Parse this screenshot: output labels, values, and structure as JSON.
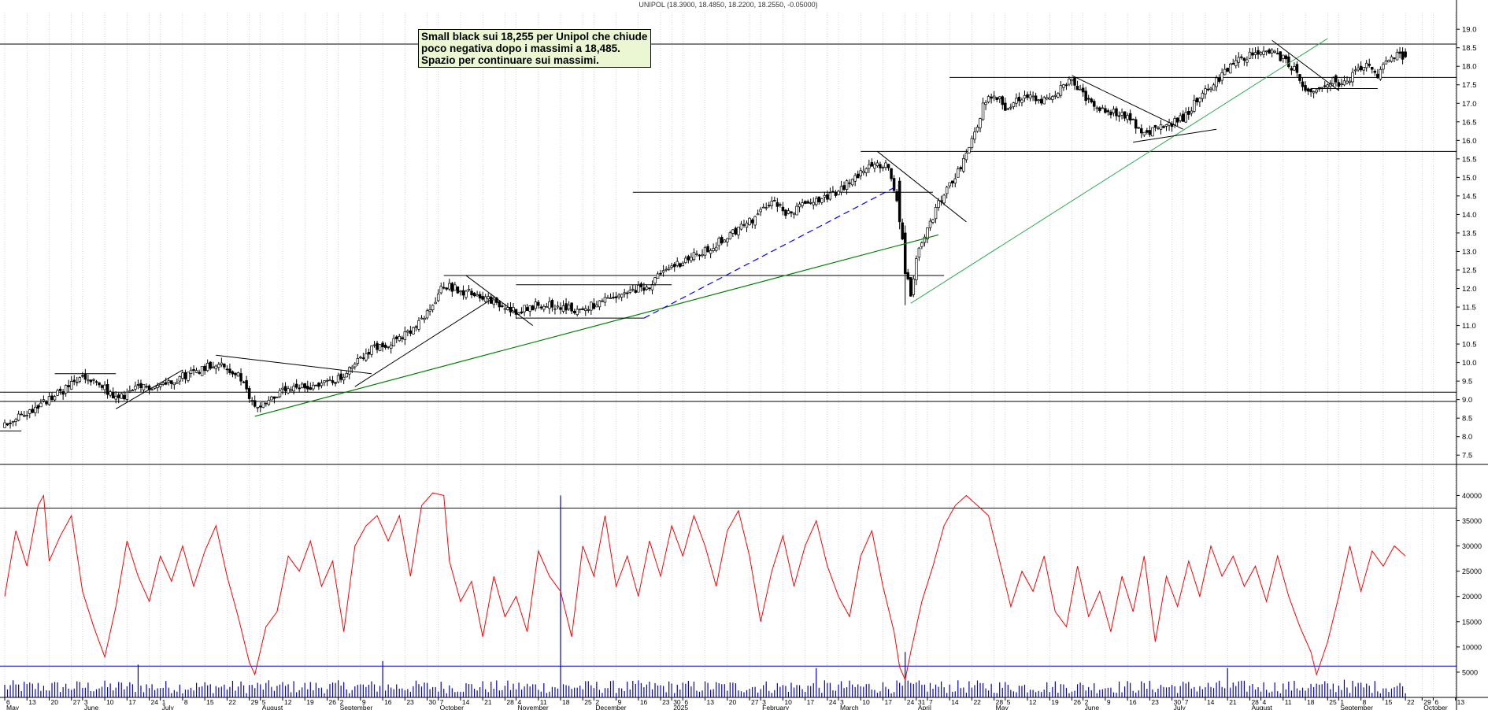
{
  "title": "UNIPOL (18.3900, 18.4850, 18.2200, 18.2550, -0.05000)",
  "annotation": {
    "lines": [
      "Small black sui 18,255  per Unipol che chiude",
      "poco negativa dopo i massimi a 18,485.",
      "Spazio per continuare sui massimi."
    ]
  },
  "colors": {
    "candle": "#000000",
    "volume": "#0000cc",
    "oscillator": "#ff0000",
    "oscillator_bands": "#0000cc",
    "support_trendline": "#008000",
    "dashed_trendline": "#0000ff",
    "long_trendline": "#2eaa52",
    "grid": "#b8b8b8",
    "annotation_bg": "#eaf7d2"
  },
  "chart_data": {
    "type": "candlestick",
    "title": "UNIPOL (18.3900, 18.4850, 18.2200, 18.2550, -0.05000)",
    "xlabel": "",
    "ylabel": "",
    "ylim": [
      7.25,
      19.45
    ],
    "y_ticks": [
      "7.5",
      "8.0",
      "8.5",
      "9.0",
      "9.5",
      "10.0",
      "10.5",
      "11.0",
      "11.5",
      "12.0",
      "12.5",
      "13.0",
      "13.5",
      "14.0",
      "14.5",
      "15.0",
      "15.5",
      "16.0",
      "16.5",
      "17.0",
      "17.5",
      "18.0",
      "18.5",
      "19.0"
    ],
    "grid": "vertical dotted",
    "last_bar": {
      "open": 18.39,
      "high": 18.485,
      "low": 18.22,
      "close": 18.255,
      "change": -0.05
    },
    "price_path": [
      {
        "d": 0,
        "c": 8.3
      },
      {
        "d": 16,
        "c": 9.0
      },
      {
        "d": 28,
        "c": 9.6
      },
      {
        "d": 36,
        "c": 9.3
      },
      {
        "d": 40,
        "c": 9.0
      },
      {
        "d": 48,
        "c": 9.3
      },
      {
        "d": 56,
        "c": 9.4
      },
      {
        "d": 68,
        "c": 9.75
      },
      {
        "d": 76,
        "c": 10.0
      },
      {
        "d": 84,
        "c": 9.65
      },
      {
        "d": 90,
        "c": 8.8
      },
      {
        "d": 100,
        "c": 9.2
      },
      {
        "d": 112,
        "c": 9.4
      },
      {
        "d": 122,
        "c": 9.6
      },
      {
        "d": 130,
        "c": 10.3
      },
      {
        "d": 140,
        "c": 10.6
      },
      {
        "d": 146,
        "c": 10.8
      },
      {
        "d": 152,
        "c": 11.3
      },
      {
        "d": 158,
        "c": 12.1
      },
      {
        "d": 166,
        "c": 11.9
      },
      {
        "d": 172,
        "c": 11.8
      },
      {
        "d": 178,
        "c": 11.5
      },
      {
        "d": 184,
        "c": 11.4
      },
      {
        "d": 194,
        "c": 11.6
      },
      {
        "d": 206,
        "c": 11.4
      },
      {
        "d": 222,
        "c": 11.8
      },
      {
        "d": 232,
        "c": 12.1
      },
      {
        "d": 240,
        "c": 12.6
      },
      {
        "d": 252,
        "c": 13.0
      },
      {
        "d": 260,
        "c": 13.4
      },
      {
        "d": 270,
        "c": 13.9
      },
      {
        "d": 276,
        "c": 14.4
      },
      {
        "d": 282,
        "c": 14.0
      },
      {
        "d": 290,
        "c": 14.4
      },
      {
        "d": 298,
        "c": 14.5
      },
      {
        "d": 306,
        "c": 15.0
      },
      {
        "d": 312,
        "c": 15.4
      },
      {
        "d": 318,
        "c": 15.3
      },
      {
        "d": 322,
        "c": 14.2
      },
      {
        "d": 324,
        "c": 12.6
      },
      {
        "d": 326,
        "c": 11.7
      },
      {
        "d": 328,
        "c": 12.8
      },
      {
        "d": 330,
        "c": 13.2
      },
      {
        "d": 336,
        "c": 14.3
      },
      {
        "d": 342,
        "c": 15.0
      },
      {
        "d": 348,
        "c": 16.0
      },
      {
        "d": 352,
        "c": 16.9
      },
      {
        "d": 356,
        "c": 17.3
      },
      {
        "d": 360,
        "c": 16.9
      },
      {
        "d": 366,
        "c": 17.2
      },
      {
        "d": 374,
        "c": 17.1
      },
      {
        "d": 380,
        "c": 17.4
      },
      {
        "d": 384,
        "c": 17.6
      },
      {
        "d": 388,
        "c": 17.2
      },
      {
        "d": 394,
        "c": 16.9
      },
      {
        "d": 402,
        "c": 16.7
      },
      {
        "d": 410,
        "c": 16.2
      },
      {
        "d": 418,
        "c": 16.4
      },
      {
        "d": 424,
        "c": 16.6
      },
      {
        "d": 430,
        "c": 17.2
      },
      {
        "d": 436,
        "c": 17.6
      },
      {
        "d": 442,
        "c": 18.1
      },
      {
        "d": 448,
        "c": 18.3
      },
      {
        "d": 454,
        "c": 18.4
      },
      {
        "d": 460,
        "c": 18.2
      },
      {
        "d": 464,
        "c": 17.9
      },
      {
        "d": 468,
        "c": 17.3
      },
      {
        "d": 474,
        "c": 17.4
      },
      {
        "d": 478,
        "c": 17.6
      },
      {
        "d": 482,
        "c": 17.5
      },
      {
        "d": 486,
        "c": 17.8
      },
      {
        "d": 490,
        "c": 18.0
      },
      {
        "d": 494,
        "c": 17.7
      },
      {
        "d": 498,
        "c": 18.2
      },
      {
        "d": 502,
        "c": 18.3
      },
      {
        "d": 504,
        "c": 18.255
      }
    ],
    "horizontal_levels": [
      {
        "y": 18.6,
        "from": 0,
        "to": 504
      },
      {
        "y": 17.7,
        "from": 340,
        "to": 504
      },
      {
        "y": 15.7,
        "from": 308,
        "to": 504
      },
      {
        "y": 14.6,
        "from": 226,
        "to": 334
      },
      {
        "y": 12.35,
        "from": 158,
        "to": 338
      },
      {
        "y": 9.2,
        "from": 0,
        "to": 504
      },
      {
        "y": 8.95,
        "from": 0,
        "to": 504
      },
      {
        "y": 8.15,
        "from": 0,
        "to": 6
      }
    ],
    "trendlines": [
      {
        "style": "green",
        "from": [
          90,
          8.55
        ],
        "to": [
          336,
          13.45
        ]
      },
      {
        "style": "long",
        "from": [
          326,
          11.6
        ],
        "to": [
          476,
          18.75
        ]
      },
      {
        "style": "dashed",
        "from": [
          230,
          11.2
        ],
        "to": [
          322,
          14.8
        ]
      },
      {
        "style": "black",
        "from": [
          126,
          9.35
        ],
        "to": [
          176,
          11.75
        ]
      },
      {
        "style": "black",
        "from": [
          76,
          10.2
        ],
        "to": [
          132,
          9.7
        ]
      },
      {
        "style": "black",
        "from": [
          40,
          8.75
        ],
        "to": [
          64,
          9.8
        ]
      },
      {
        "style": "black",
        "from": [
          166,
          12.35
        ],
        "to": [
          190,
          11.0
        ]
      },
      {
        "style": "black",
        "from": [
          314,
          15.7
        ],
        "to": [
          346,
          13.8
        ]
      },
      {
        "style": "black",
        "from": [
          384,
          17.75
        ],
        "to": [
          424,
          16.3
        ]
      },
      {
        "style": "black",
        "from": [
          406,
          15.95
        ],
        "to": [
          436,
          16.3
        ]
      },
      {
        "style": "black",
        "from": [
          456,
          18.7
        ],
        "to": [
          480,
          17.35
        ]
      },
      {
        "style": "black",
        "from": [
          470,
          17.4
        ],
        "to": [
          494,
          17.4
        ]
      },
      {
        "style": "black",
        "from": [
          184,
          11.2
        ],
        "to": [
          230,
          11.2
        ]
      },
      {
        "style": "black",
        "from": [
          184,
          12.1
        ],
        "to": [
          240,
          12.1
        ]
      },
      {
        "style": "black",
        "from": [
          18,
          9.7
        ],
        "to": [
          40,
          9.7
        ]
      }
    ],
    "volume": {
      "scale_ticks": [
        "5000",
        "10000",
        "15000",
        "20000",
        "25000",
        "30000",
        "35000",
        "40000"
      ],
      "band_high": 37500,
      "band_low": 6200,
      "ylim": [
        0,
        43500
      ],
      "spikes": [
        {
          "d": 48,
          "v": 6500
        },
        {
          "d": 136,
          "v": 7200
        },
        {
          "d": 200,
          "v": 40000
        },
        {
          "d": 292,
          "v": 5800
        },
        {
          "d": 324,
          "v": 9000
        },
        {
          "d": 440,
          "v": 5800
        },
        {
          "d": 482,
          "v": 3500
        }
      ]
    },
    "oscillator_red_path": [
      [
        0,
        20000
      ],
      [
        4,
        33000
      ],
      [
        8,
        26000
      ],
      [
        12,
        38000
      ],
      [
        14,
        40000
      ],
      [
        16,
        27000
      ],
      [
        20,
        32000
      ],
      [
        24,
        36000
      ],
      [
        28,
        21000
      ],
      [
        32,
        14000
      ],
      [
        36,
        8000
      ],
      [
        40,
        18000
      ],
      [
        44,
        31000
      ],
      [
        48,
        24000
      ],
      [
        52,
        19000
      ],
      [
        56,
        28000
      ],
      [
        60,
        23000
      ],
      [
        64,
        30000
      ],
      [
        68,
        22000
      ],
      [
        72,
        29000
      ],
      [
        76,
        34000
      ],
      [
        80,
        24000
      ],
      [
        84,
        16000
      ],
      [
        88,
        7000
      ],
      [
        90,
        4500
      ],
      [
        94,
        14000
      ],
      [
        98,
        17000
      ],
      [
        102,
        28000
      ],
      [
        106,
        25000
      ],
      [
        110,
        31000
      ],
      [
        114,
        22000
      ],
      [
        118,
        27000
      ],
      [
        122,
        13000
      ],
      [
        126,
        30000
      ],
      [
        130,
        34000
      ],
      [
        134,
        36000
      ],
      [
        138,
        31000
      ],
      [
        142,
        36000
      ],
      [
        146,
        24000
      ],
      [
        150,
        38000
      ],
      [
        154,
        40500
      ],
      [
        158,
        40000
      ],
      [
        160,
        27000
      ],
      [
        164,
        19000
      ],
      [
        168,
        23000
      ],
      [
        172,
        12000
      ],
      [
        176,
        24000
      ],
      [
        180,
        16000
      ],
      [
        184,
        20000
      ],
      [
        188,
        13000
      ],
      [
        192,
        29000
      ],
      [
        196,
        24000
      ],
      [
        200,
        21000
      ],
      [
        204,
        12000
      ],
      [
        208,
        30000
      ],
      [
        212,
        24000
      ],
      [
        216,
        36000
      ],
      [
        220,
        22000
      ],
      [
        224,
        28000
      ],
      [
        228,
        20000
      ],
      [
        232,
        31000
      ],
      [
        236,
        24000
      ],
      [
        240,
        34000
      ],
      [
        244,
        28000
      ],
      [
        248,
        36000
      ],
      [
        252,
        30000
      ],
      [
        256,
        22000
      ],
      [
        260,
        33000
      ],
      [
        264,
        37000
      ],
      [
        268,
        28000
      ],
      [
        272,
        15000
      ],
      [
        276,
        25000
      ],
      [
        280,
        32000
      ],
      [
        284,
        22000
      ],
      [
        288,
        30000
      ],
      [
        292,
        35000
      ],
      [
        296,
        26000
      ],
      [
        300,
        20000
      ],
      [
        304,
        16000
      ],
      [
        308,
        28000
      ],
      [
        312,
        33000
      ],
      [
        316,
        22000
      ],
      [
        320,
        13000
      ],
      [
        322,
        6000
      ],
      [
        324,
        3500
      ],
      [
        326,
        9000
      ],
      [
        330,
        19000
      ],
      [
        334,
        26000
      ],
      [
        338,
        34000
      ],
      [
        342,
        38000
      ],
      [
        346,
        40000
      ],
      [
        350,
        38000
      ],
      [
        354,
        36000
      ],
      [
        358,
        27000
      ],
      [
        362,
        18000
      ],
      [
        366,
        25000
      ],
      [
        370,
        21000
      ],
      [
        374,
        28000
      ],
      [
        378,
        17000
      ],
      [
        382,
        14000
      ],
      [
        386,
        26000
      ],
      [
        390,
        16000
      ],
      [
        394,
        21000
      ],
      [
        398,
        13000
      ],
      [
        402,
        24000
      ],
      [
        406,
        17000
      ],
      [
        410,
        28000
      ],
      [
        414,
        11000
      ],
      [
        418,
        24000
      ],
      [
        422,
        18000
      ],
      [
        426,
        27000
      ],
      [
        430,
        20000
      ],
      [
        434,
        30000
      ],
      [
        438,
        24000
      ],
      [
        442,
        28000
      ],
      [
        446,
        22000
      ],
      [
        450,
        26000
      ],
      [
        454,
        19000
      ],
      [
        458,
        28000
      ],
      [
        462,
        20000
      ],
      [
        466,
        14000
      ],
      [
        470,
        9000
      ],
      [
        472,
        4500
      ],
      [
        476,
        11000
      ],
      [
        480,
        20000
      ],
      [
        484,
        30000
      ],
      [
        488,
        21000
      ],
      [
        492,
        29000
      ],
      [
        496,
        26000
      ],
      [
        500,
        30000
      ],
      [
        504,
        28000
      ]
    ],
    "x_day_labels": [
      {
        "d": 0,
        "t": "6"
      },
      {
        "d": 8,
        "t": "13"
      },
      {
        "d": 16,
        "t": "20"
      },
      {
        "d": 24,
        "t": "27"
      },
      {
        "d": 28,
        "t": "3"
      },
      {
        "d": 36,
        "t": "10"
      },
      {
        "d": 44,
        "t": "17"
      },
      {
        "d": 52,
        "t": "24"
      },
      {
        "d": 56,
        "t": "1"
      },
      {
        "d": 64,
        "t": "8"
      },
      {
        "d": 72,
        "t": "15"
      },
      {
        "d": 80,
        "t": "22"
      },
      {
        "d": 88,
        "t": "29"
      },
      {
        "d": 92,
        "t": "5"
      },
      {
        "d": 100,
        "t": "12"
      },
      {
        "d": 108,
        "t": "19"
      },
      {
        "d": 116,
        "t": "26"
      },
      {
        "d": 120,
        "t": "2"
      },
      {
        "d": 128,
        "t": "9"
      },
      {
        "d": 136,
        "t": "16"
      },
      {
        "d": 144,
        "t": "23"
      },
      {
        "d": 152,
        "t": "30"
      },
      {
        "d": 156,
        "t": "7"
      },
      {
        "d": 164,
        "t": "14"
      },
      {
        "d": 172,
        "t": "21"
      },
      {
        "d": 180,
        "t": "28"
      },
      {
        "d": 184,
        "t": "4"
      },
      {
        "d": 192,
        "t": "11"
      },
      {
        "d": 200,
        "t": "18"
      },
      {
        "d": 208,
        "t": "25"
      },
      {
        "d": 212,
        "t": "2"
      },
      {
        "d": 220,
        "t": "9"
      },
      {
        "d": 228,
        "t": "16"
      },
      {
        "d": 236,
        "t": "23"
      },
      {
        "d": 240,
        "t": "30"
      },
      {
        "d": 244,
        "t": "6"
      },
      {
        "d": 252,
        "t": "13"
      },
      {
        "d": 260,
        "t": "20"
      },
      {
        "d": 268,
        "t": "27"
      },
      {
        "d": 272,
        "t": "3"
      },
      {
        "d": 280,
        "t": "10"
      },
      {
        "d": 288,
        "t": "17"
      },
      {
        "d": 296,
        "t": "24"
      },
      {
        "d": 300,
        "t": "3"
      },
      {
        "d": 308,
        "t": "10"
      },
      {
        "d": 316,
        "t": "17"
      },
      {
        "d": 324,
        "t": "24"
      },
      {
        "d": 328,
        "t": "31"
      },
      {
        "d": 332,
        "t": "7"
      },
      {
        "d": 340,
        "t": "14"
      },
      {
        "d": 348,
        "t": "22"
      },
      {
        "d": 356,
        "t": "28"
      },
      {
        "d": 360,
        "t": "5"
      },
      {
        "d": 368,
        "t": "12"
      },
      {
        "d": 376,
        "t": "19"
      },
      {
        "d": 384,
        "t": "26"
      },
      {
        "d": 388,
        "t": "2"
      },
      {
        "d": 396,
        "t": "9"
      },
      {
        "d": 404,
        "t": "16"
      },
      {
        "d": 412,
        "t": "23"
      },
      {
        "d": 420,
        "t": "30"
      },
      {
        "d": 424,
        "t": "7"
      },
      {
        "d": 432,
        "t": "14"
      },
      {
        "d": 440,
        "t": "21"
      },
      {
        "d": 448,
        "t": "28"
      },
      {
        "d": 452,
        "t": "4"
      },
      {
        "d": 460,
        "t": "11"
      },
      {
        "d": 468,
        "t": "18"
      },
      {
        "d": 476,
        "t": "25"
      },
      {
        "d": 480,
        "t": "1"
      },
      {
        "d": 488,
        "t": "8"
      },
      {
        "d": 496,
        "t": "15"
      },
      {
        "d": 504,
        "t": "22"
      },
      {
        "d": 510,
        "t": "29"
      },
      {
        "d": 514,
        "t": "6"
      },
      {
        "d": 522,
        "t": "13"
      }
    ],
    "x_month_labels": [
      {
        "d": 0,
        "t": "May"
      },
      {
        "d": 28,
        "t": "June"
      },
      {
        "d": 56,
        "t": "July"
      },
      {
        "d": 92,
        "t": "August"
      },
      {
        "d": 120,
        "t": "September"
      },
      {
        "d": 156,
        "t": "October"
      },
      {
        "d": 184,
        "t": "November"
      },
      {
        "d": 212,
        "t": "December"
      },
      {
        "d": 240,
        "t": "2025"
      },
      {
        "d": 272,
        "t": "February"
      },
      {
        "d": 300,
        "t": "March"
      },
      {
        "d": 328,
        "t": "April"
      },
      {
        "d": 356,
        "t": "May"
      },
      {
        "d": 388,
        "t": "June"
      },
      {
        "d": 420,
        "t": "July"
      },
      {
        "d": 448,
        "t": "August"
      },
      {
        "d": 480,
        "t": "September"
      },
      {
        "d": 510,
        "t": "October"
      }
    ]
  }
}
